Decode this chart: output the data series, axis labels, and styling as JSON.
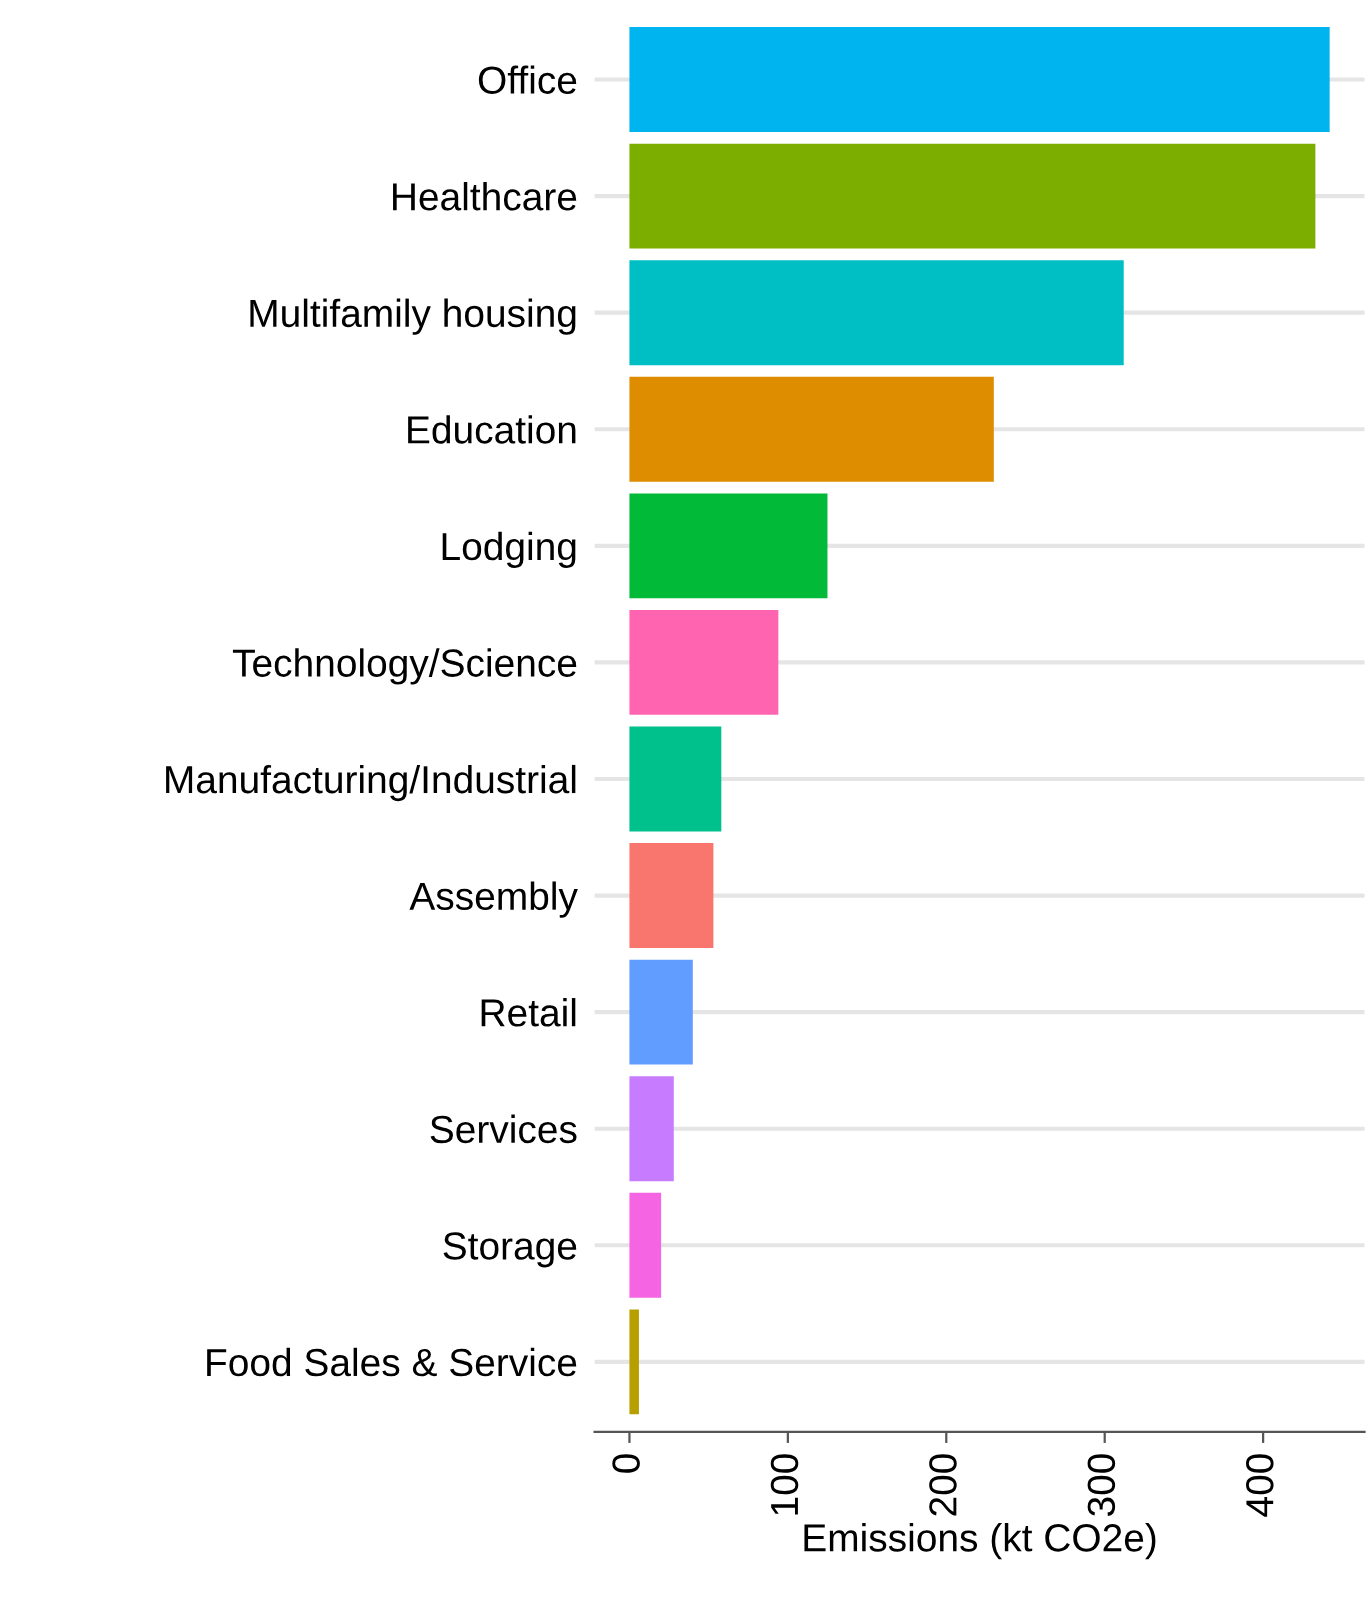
{
  "chart_data": {
    "type": "bar",
    "orientation": "horizontal",
    "xlabel": "Emissions (kt CO2e)",
    "categories": [
      "Office",
      "Healthcare",
      "Multifamily housing",
      "Education",
      "Lodging",
      "Technology/Science",
      "Manufacturing/Industrial",
      "Assembly",
      "Retail",
      "Services",
      "Storage",
      "Food Sales & Service"
    ],
    "values": [
      442,
      433,
      312,
      230,
      125,
      94,
      58,
      53,
      40,
      28,
      20,
      6
    ],
    "colors": [
      "#00B4F0",
      "#7CAE00",
      "#00BFC4",
      "#DE8C00",
      "#00BA38",
      "#FF64B0",
      "#00C08B",
      "#F8766D",
      "#619CFF",
      "#C77CFF",
      "#F564E3",
      "#B79F00"
    ],
    "xlim": [
      -22,
      464
    ],
    "xticks": [
      0,
      100,
      200,
      300,
      400
    ],
    "grid": "y"
  }
}
